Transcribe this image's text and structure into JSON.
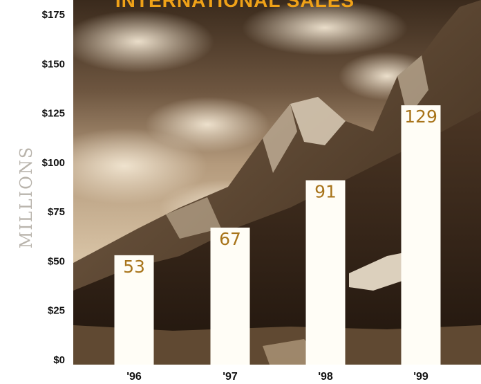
{
  "chart_data": {
    "type": "bar",
    "title": "INTERNATIONAL SALES",
    "ylabel": "MILLIONS",
    "xlabel": "",
    "categories": [
      "'96",
      "'97",
      "'98",
      "'99"
    ],
    "values": [
      53,
      67,
      91,
      129
    ],
    "ylim": [
      0,
      175
    ],
    "yticks": [
      0,
      25,
      50,
      75,
      100,
      125,
      150,
      175
    ],
    "ytick_labels": [
      "$0",
      "$25",
      "$50",
      "$75",
      "$100",
      "$125",
      "$150",
      "$175"
    ],
    "grid": false,
    "legend": "none",
    "colors": {
      "bar_fill": "#fffdf6",
      "data_label": "#a8741a",
      "title": "#f0a218",
      "axis_label": "#b9b4ac",
      "background_sepia_dark": "#3b2a1a",
      "background_sepia_light": "#e8d6bc"
    },
    "background": "sepia mountain landscape photograph"
  }
}
